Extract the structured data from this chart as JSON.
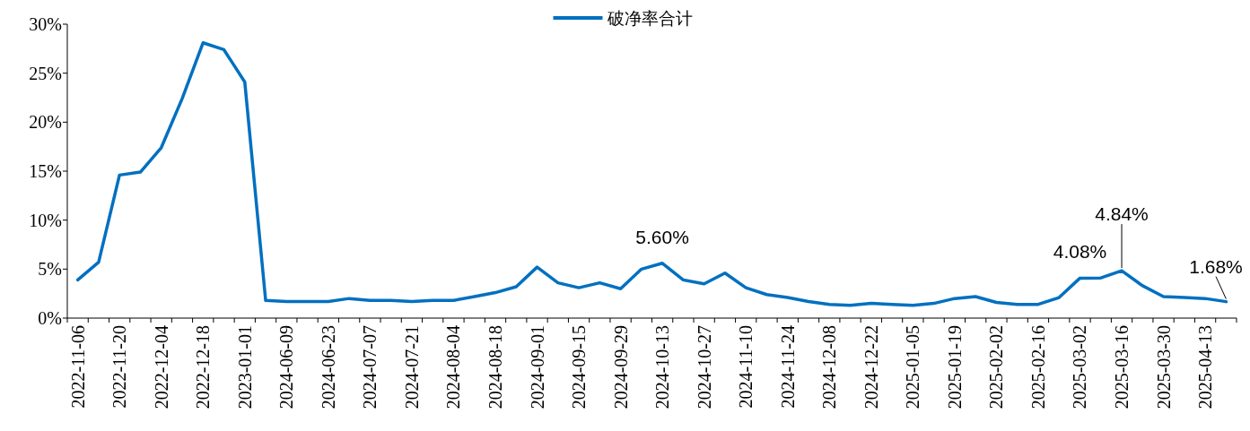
{
  "chart_data": {
    "type": "line",
    "categories": [
      "2022-11-06",
      null,
      "2022-11-20",
      null,
      "2022-12-04",
      null,
      "2022-12-18",
      null,
      "2023-01-01",
      null,
      "2024-06-09",
      null,
      "2024-06-23",
      null,
      "2024-07-07",
      null,
      "2024-07-21",
      null,
      "2024-08-04",
      null,
      "2024-08-18",
      null,
      "2024-09-01",
      null,
      "2024-09-15",
      null,
      "2024-09-29",
      null,
      "2024-10-13",
      null,
      "2024-10-27",
      null,
      "2024-11-10",
      null,
      "2024-11-24",
      null,
      "2024-12-08",
      null,
      "2024-12-22",
      null,
      "2025-01-05",
      null,
      "2025-01-19",
      null,
      "2025-02-02",
      null,
      "2025-02-16",
      null,
      "2025-03-02",
      null,
      "2025-03-16",
      null,
      "2025-03-30",
      null,
      "2025-04-13",
      null
    ],
    "series": [
      {
        "name": "破净率合计",
        "color": "#0070c0",
        "values": [
          3.9,
          5.7,
          14.6,
          14.9,
          17.4,
          22.4,
          28.1,
          27.4,
          24.1,
          1.8,
          1.7,
          1.7,
          1.7,
          2.0,
          1.8,
          1.8,
          1.7,
          1.8,
          1.8,
          2.2,
          2.6,
          3.2,
          5.2,
          3.6,
          3.1,
          3.6,
          3.0,
          5.0,
          5.6,
          3.9,
          3.5,
          4.6,
          3.1,
          2.4,
          2.1,
          1.7,
          1.4,
          1.3,
          1.5,
          1.4,
          1.3,
          1.5,
          2.0,
          2.2,
          1.6,
          1.4,
          1.4,
          2.1,
          4.08,
          4.1,
          4.84,
          3.3,
          2.2,
          2.1,
          2.0,
          1.68
        ],
        "value_labels": [
          null,
          null,
          null,
          null,
          null,
          null,
          null,
          null,
          null,
          null,
          null,
          null,
          null,
          null,
          null,
          null,
          null,
          null,
          null,
          null,
          null,
          null,
          null,
          null,
          null,
          null,
          null,
          null,
          "5.60%",
          null,
          null,
          null,
          null,
          null,
          null,
          null,
          null,
          null,
          null,
          null,
          null,
          null,
          null,
          null,
          null,
          null,
          null,
          null,
          "4.08%",
          null,
          "4.84%",
          null,
          null,
          null,
          null,
          "1.68%"
        ]
      }
    ],
    "ylim": [
      0,
      30
    ],
    "yticks": [
      {
        "value": 0,
        "label": "0%"
      },
      {
        "value": 5,
        "label": "5%"
      },
      {
        "value": 10,
        "label": "10%"
      },
      {
        "value": 15,
        "label": "15%"
      },
      {
        "value": 20,
        "label": "20%"
      },
      {
        "value": 25,
        "label": "25%"
      },
      {
        "value": 30,
        "label": "30%"
      }
    ],
    "legend": "top",
    "grid": false,
    "marker": "none",
    "line_style": "solid"
  }
}
